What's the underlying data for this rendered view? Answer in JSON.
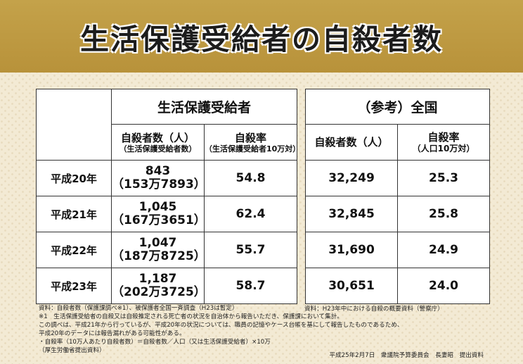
{
  "title": "生活保護受給者の自殺者数",
  "left_table": {
    "group_header": "生活保護受給者",
    "col1_header": "自殺者数（人）",
    "col1_sub": "（生活保護受給者数）",
    "col2_header": "自殺率",
    "col2_sub": "（生活保護受給者10万対）",
    "rows": [
      {
        "year": "平成20年",
        "count": "843",
        "recipients": "（153万7893）",
        "rate": "54.8"
      },
      {
        "year": "平成21年",
        "count": "1,045",
        "recipients": "（167万3651）",
        "rate": "62.4"
      },
      {
        "year": "平成22年",
        "count": "1,047",
        "recipients": "（187万8725）",
        "rate": "55.7"
      },
      {
        "year": "平成23年",
        "count": "1,187",
        "recipients": "（202万3725）",
        "rate": "58.7"
      }
    ]
  },
  "right_table": {
    "group_header": "（参考）全国",
    "col1_header": "自殺者数（人）",
    "col2_header": "自殺率",
    "col2_sub": "（人口10万対）",
    "rows": [
      {
        "count": "32,249",
        "rate": "25.3"
      },
      {
        "count": "32,845",
        "rate": "25.8"
      },
      {
        "count": "31,690",
        "rate": "24.9"
      },
      {
        "count": "30,651",
        "rate": "24.0"
      }
    ]
  },
  "notes": {
    "source_left": "資料：自殺者数（保護課調べ※1）、被保護者全国一斉調査（H23は暫定）",
    "source_right": "資料：H23年中における自殺の概要資料（警察庁）",
    "note1": "※1　生活保護受給者の自殺又は自殺推定される死亡者の状況を自治体から報告いただき、保護課において集計。",
    "note2": "この調べは、平成21年から行っているが、平成20年の状況については、職員の記憶やケース台帳を基にして報告したものであるため、",
    "note3": "平成20年のデータには報告漏れがある可能性がある。",
    "note4": "・自殺率（10万人あたり自殺者数）＝自殺者数／人口（又は生活保護受給者）×10万",
    "note5": "（厚生労働省提出資料）",
    "footer": "平成25年2月7日　衆議院予算委員会　長妻昭　提出資料"
  }
}
